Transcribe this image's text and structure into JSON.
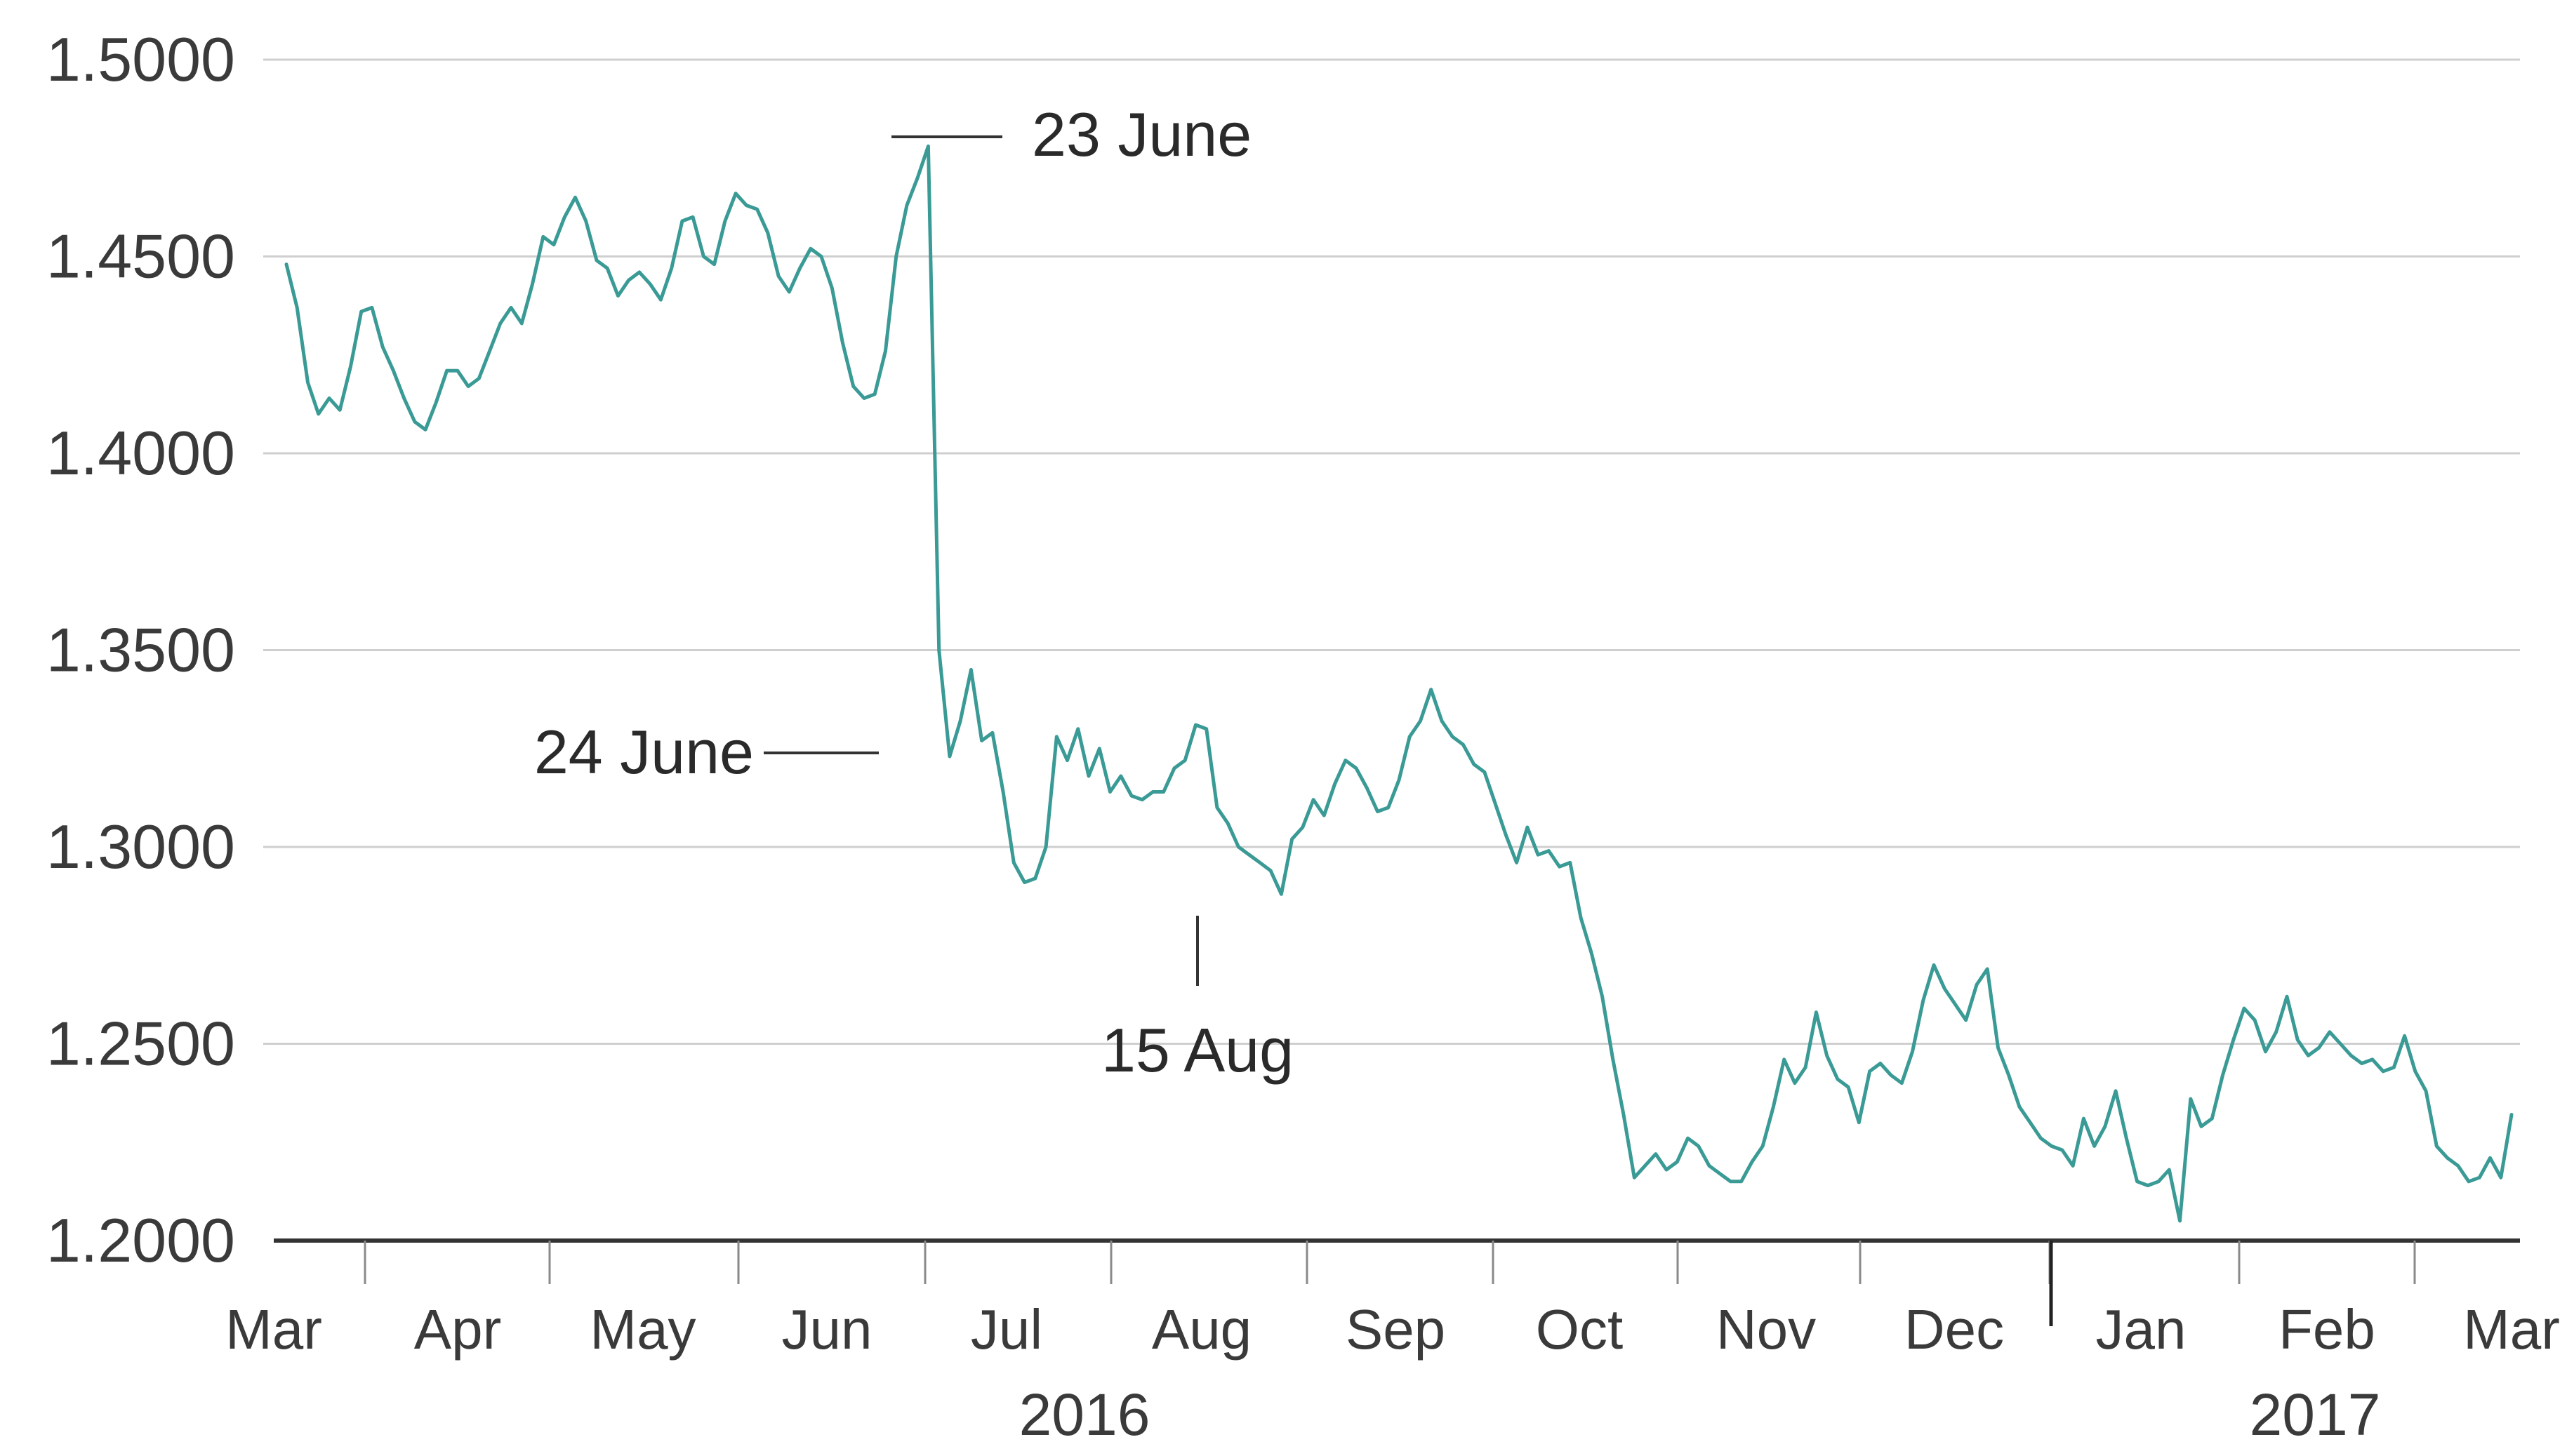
{
  "chart_data": {
    "type": "line",
    "title": "",
    "xlabel": "",
    "ylabel": "",
    "ylim": [
      1.2,
      1.5
    ],
    "y_ticks": [
      "1.5000",
      "1.4500",
      "1.4000",
      "1.3500",
      "1.3000",
      "1.2500",
      "1.2000"
    ],
    "x_ticks": [
      "Mar",
      "Apr",
      "May",
      "Jun",
      "Jul",
      "Aug",
      "Sep",
      "Oct",
      "Nov",
      "Dec",
      "Jan",
      "Feb",
      "Mar"
    ],
    "years": [
      "2016",
      "2017"
    ],
    "grid": true,
    "line_color": "#3a9a95",
    "series": [
      {
        "values": [
          1.448,
          1.437,
          1.418,
          1.41,
          1.414,
          1.411,
          1.422,
          1.436,
          1.437,
          1.427,
          1.421,
          1.414,
          1.408,
          1.406,
          1.413,
          1.421,
          1.421,
          1.417,
          1.419,
          1.426,
          1.433,
          1.437,
          1.433,
          1.443,
          1.455,
          1.453,
          1.46,
          1.465,
          1.459,
          1.449,
          1.447,
          1.44,
          1.444,
          1.446,
          1.443,
          1.439,
          1.447,
          1.459,
          1.46,
          1.45,
          1.448,
          1.459,
          1.466,
          1.463,
          1.462,
          1.456,
          1.445,
          1.441,
          1.447,
          1.452,
          1.45,
          1.442,
          1.428,
          1.417,
          1.414,
          1.415,
          1.426,
          1.45,
          1.463,
          1.47,
          1.478,
          1.35,
          1.323,
          1.332,
          1.345,
          1.327,
          1.329,
          1.314,
          1.296,
          1.291,
          1.292,
          1.3,
          1.328,
          1.322,
          1.33,
          1.318,
          1.325,
          1.314,
          1.318,
          1.313,
          1.312,
          1.314,
          1.314,
          1.32,
          1.322,
          1.331,
          1.33,
          1.31,
          1.306,
          1.3,
          1.298,
          1.296,
          1.294,
          1.288,
          1.302,
          1.305,
          1.312,
          1.308,
          1.316,
          1.322,
          1.32,
          1.315,
          1.309,
          1.31,
          1.317,
          1.328,
          1.332,
          1.34,
          1.332,
          1.328,
          1.326,
          1.321,
          1.319,
          1.311,
          1.303,
          1.296,
          1.305,
          1.298,
          1.299,
          1.295,
          1.296,
          1.282,
          1.273,
          1.262,
          1.246,
          1.232,
          1.216,
          1.219,
          1.222,
          1.218,
          1.22,
          1.226,
          1.224,
          1.219,
          1.217,
          1.215,
          1.215,
          1.22,
          1.224,
          1.234,
          1.246,
          1.24,
          1.244,
          1.258,
          1.247,
          1.241,
          1.239,
          1.23,
          1.243,
          1.245,
          1.242,
          1.24,
          1.248,
          1.261,
          1.27,
          1.264,
          1.26,
          1.256,
          1.265,
          1.269,
          1.249,
          1.242,
          1.234,
          1.23,
          1.226,
          1.224,
          1.223,
          1.219,
          1.231,
          1.224,
          1.229,
          1.238,
          1.226,
          1.215,
          1.214,
          1.215,
          1.218,
          1.205,
          1.236,
          1.229,
          1.231,
          1.242,
          1.251,
          1.259,
          1.256,
          1.248,
          1.253,
          1.262,
          1.251,
          1.247,
          1.249,
          1.253,
          1.25,
          1.247,
          1.245,
          1.246,
          1.243,
          1.244,
          1.252,
          1.243,
          1.238,
          1.224,
          1.221,
          1.219,
          1.215,
          1.216,
          1.221,
          1.216,
          1.232
        ]
      }
    ],
    "annotations": [
      {
        "label": "23 June",
        "value": 1.478
      },
      {
        "label": "24 June",
        "value": 1.323
      },
      {
        "label": "15 Aug",
        "value": 1.288
      }
    ]
  }
}
